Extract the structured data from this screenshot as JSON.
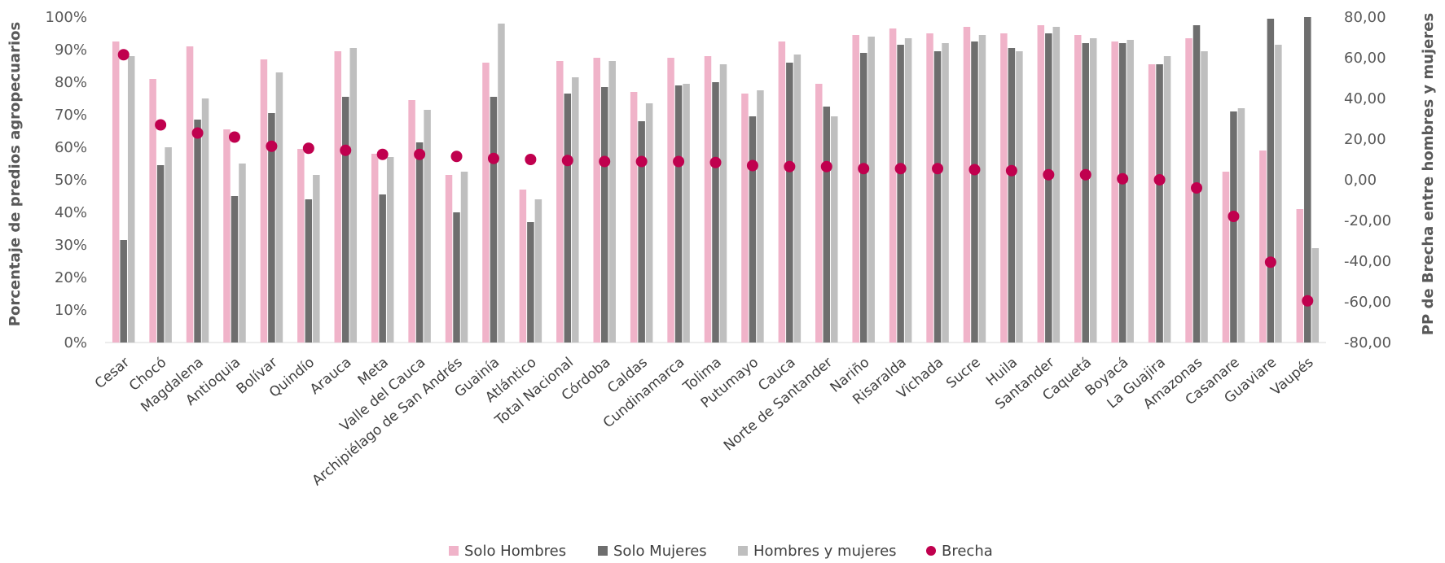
{
  "chart_data": {
    "type": "bar",
    "ylabel": "Porcentaje de predios agropecuarios",
    "y2label": "PP de Brecha entre hombres y mujeres",
    "ylim": [
      0,
      100
    ],
    "y2lim": [
      -80,
      80
    ],
    "yticks": [
      "0%",
      "10%",
      "20%",
      "30%",
      "40%",
      "50%",
      "60%",
      "70%",
      "80%",
      "90%",
      "100%"
    ],
    "y2ticks": [
      "-80,00",
      "-60,00",
      "-40,00",
      "-20,00",
      "0,00",
      "20,00",
      "40,00",
      "60,00",
      "80,00"
    ],
    "grid": false,
    "legend_position": "bottom",
    "categories": [
      "Cesar",
      "Chocó",
      "Magdalena",
      "Antioquia",
      "Bolívar",
      "Quindío",
      "Arauca",
      "Meta",
      "Valle del Cauca",
      "Archipiélago de San Andrés",
      "Guainía",
      "Atlántico",
      "Total Nacional",
      "Córdoba",
      "Caldas",
      "Cundinamarca",
      "Tolima",
      "Putumayo",
      "Cauca",
      "Norte de Santander",
      "Nariño",
      "Risaralda",
      "Vichada",
      "Sucre",
      "Huila",
      "Santander",
      "Caquetá",
      "Boyacá",
      "La Guajira",
      "Amazonas",
      "Casanare",
      "Guaviare",
      "Vaupés"
    ],
    "series": [
      {
        "name": "Solo Hombres",
        "kind": "bar",
        "axis": "left",
        "color": "#F0B3C9",
        "values": [
          92.5,
          81,
          91,
          65.5,
          87,
          59.5,
          89.5,
          58,
          74.5,
          51.5,
          86,
          47,
          86.5,
          87.5,
          77,
          87.5,
          88,
          76.5,
          92.5,
          79.5,
          94.5,
          96.5,
          95,
          97,
          95,
          97.5,
          94.5,
          92.5,
          85.5,
          93.5,
          52.5,
          59,
          41
        ]
      },
      {
        "name": "Solo Mujeres",
        "kind": "bar",
        "axis": "left",
        "color": "#6E6E6E",
        "values": [
          31.5,
          54.5,
          68.5,
          45,
          70.5,
          44,
          75.5,
          45.5,
          61.5,
          40,
          75.5,
          37,
          76.5,
          78.5,
          68,
          79,
          80,
          69.5,
          86,
          72.5,
          89,
          91.5,
          89.5,
          92.5,
          90.5,
          95,
          92,
          92,
          85.5,
          97.5,
          71,
          99.5,
          100
        ]
      },
      {
        "name": "Hombres y mujeres",
        "kind": "bar",
        "axis": "left",
        "color": "#BFBFBF",
        "values": [
          88,
          60,
          75,
          55,
          83,
          51.5,
          90.5,
          57,
          71.5,
          52.5,
          98,
          44,
          81.5,
          86.5,
          73.5,
          79.5,
          85.5,
          77.5,
          88.5,
          69.5,
          94,
          93.5,
          92,
          94.5,
          89.5,
          97,
          93.5,
          93,
          88,
          89.5,
          72,
          91.5,
          29
        ]
      },
      {
        "name": "Brecha",
        "kind": "scatter",
        "axis": "right",
        "color": "#C0004E",
        "values": [
          61.5,
          27,
          23,
          21,
          16.5,
          15.5,
          14.5,
          12.5,
          12.5,
          11.5,
          10.5,
          10,
          9.5,
          9,
          9,
          9,
          8.5,
          7,
          6.5,
          6.5,
          5.5,
          5.5,
          5.5,
          5,
          4.5,
          2.5,
          2.5,
          0.5,
          0,
          -4,
          -18,
          -40.5,
          -59.5
        ]
      }
    ]
  }
}
